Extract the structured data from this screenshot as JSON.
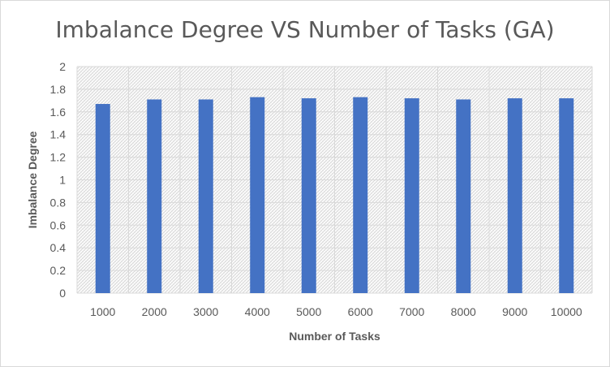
{
  "chart_data": {
    "type": "bar",
    "title": "Imbalance Degree VS Number of Tasks (GA)",
    "xlabel": "Number of Tasks",
    "ylabel": "Imbalance Degree",
    "categories": [
      "1000",
      "2000",
      "3000",
      "4000",
      "5000",
      "6000",
      "7000",
      "8000",
      "9000",
      "10000"
    ],
    "values": [
      1.67,
      1.71,
      1.71,
      1.73,
      1.72,
      1.73,
      1.72,
      1.71,
      1.72,
      1.72
    ],
    "ylim": [
      0,
      2
    ],
    "yticks": [
      "0",
      "0.2",
      "0.4",
      "0.6",
      "0.8",
      "1",
      "1.2",
      "1.4",
      "1.6",
      "1.8",
      "2"
    ],
    "grid": true,
    "bar_color": "#4472c4",
    "plot_background": "hatched light gray"
  }
}
